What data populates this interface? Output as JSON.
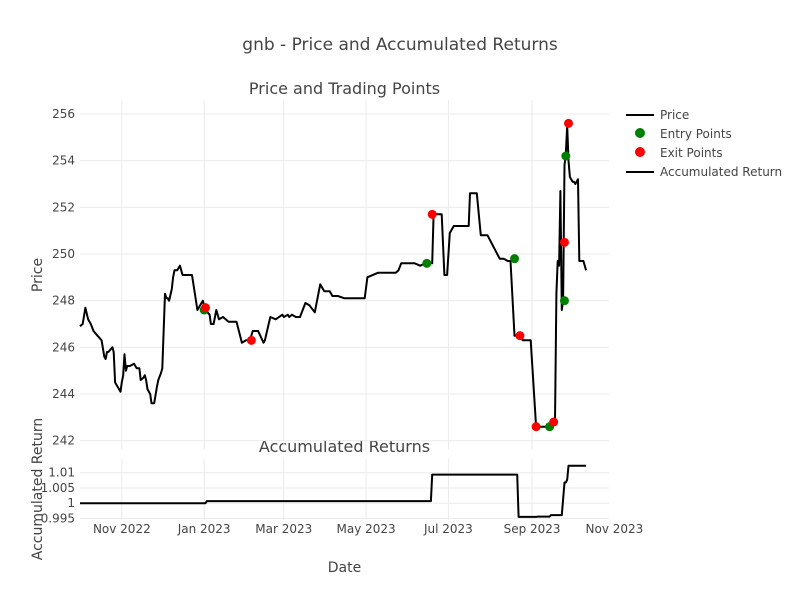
{
  "title": "gnb - Price and Accumulated Returns",
  "chart_data": [
    {
      "type": "line",
      "subplot_title": "Price and Trading Points",
      "ylabel": "Price",
      "xlim": [
        "2022-10-01",
        "2023-10-28"
      ],
      "ylim": [
        241.6,
        256.6
      ],
      "yticks": [
        242,
        244,
        246,
        248,
        250,
        252,
        254,
        256
      ],
      "grid": true,
      "series": [
        {
          "name": "Price",
          "color": "#000000",
          "x": [
            "2022-10-01",
            "2022-10-03",
            "2022-10-05",
            "2022-10-07",
            "2022-10-09",
            "2022-10-11",
            "2022-10-14",
            "2022-10-17",
            "2022-10-19",
            "2022-10-20",
            "2022-10-21",
            "2022-10-22",
            "2022-10-25",
            "2022-10-26",
            "2022-10-27",
            "2022-10-28",
            "2022-10-29",
            "2022-10-31",
            "2022-11-01",
            "2022-11-02",
            "2022-11-03",
            "2022-11-04",
            "2022-11-05",
            "2022-11-07",
            "2022-11-10",
            "2022-11-12",
            "2022-11-13",
            "2022-11-14",
            "2022-11-15",
            "2022-11-17",
            "2022-11-18",
            "2022-11-19",
            "2022-11-20",
            "2022-11-22",
            "2022-11-23",
            "2022-11-25",
            "2022-11-27",
            "2022-11-28",
            "2022-11-30",
            "2022-12-01",
            "2022-12-03",
            "2022-12-04",
            "2022-12-05",
            "2022-12-06",
            "2022-12-08",
            "2022-12-09",
            "2022-12-10",
            "2022-12-12",
            "2022-12-14",
            "2022-12-16",
            "2022-12-17",
            "2022-12-18",
            "2022-12-19",
            "2022-12-20",
            "2022-12-23",
            "2022-12-27",
            "2022-12-31",
            "2023-01-02",
            "2023-01-05",
            "2023-01-06",
            "2023-01-08",
            "2023-01-10",
            "2023-01-12",
            "2023-01-15",
            "2023-01-17",
            "2023-01-19",
            "2023-01-21",
            "2023-01-23",
            "2023-01-25",
            "2023-01-29",
            "2023-02-01",
            "2023-02-03",
            "2023-02-04",
            "2023-02-06",
            "2023-02-10",
            "2023-02-14",
            "2023-02-15",
            "2023-02-19",
            "2023-02-23",
            "2023-02-28",
            "2023-03-01",
            "2023-03-04",
            "2023-03-05",
            "2023-03-07",
            "2023-03-10",
            "2023-03-13",
            "2023-03-17",
            "2023-03-20",
            "2023-03-24",
            "2023-03-28",
            "2023-03-31",
            "2023-04-04",
            "2023-04-06",
            "2023-04-10",
            "2023-04-15",
            "2023-04-17",
            "2023-04-21",
            "2023-04-27",
            "2023-04-30",
            "2023-05-02",
            "2023-05-10",
            "2023-05-20",
            "2023-05-23",
            "2023-05-25",
            "2023-05-27",
            "2023-05-29",
            "2023-06-02",
            "2023-06-06",
            "2023-06-10",
            "2023-06-14",
            "2023-06-17",
            "2023-06-19",
            "2023-06-20",
            "2023-06-26",
            "2023-06-28",
            "2023-06-30",
            "2023-07-02",
            "2023-07-05",
            "2023-07-08",
            "2023-07-10",
            "2023-07-13",
            "2023-07-15",
            "2023-07-16",
            "2023-07-17",
            "2023-07-19",
            "2023-07-22",
            "2023-07-25",
            "2023-07-27",
            "2023-07-30",
            "2023-08-08",
            "2023-08-10",
            "2023-08-11",
            "2023-08-14",
            "2023-08-16",
            "2023-08-19",
            "2023-08-24",
            "2023-08-25",
            "2023-08-30",
            "2023-08-31",
            "2023-09-04",
            "2023-09-05",
            "2023-09-06",
            "2023-09-10",
            "2023-09-12",
            "2023-09-13",
            "2023-09-15",
            "2023-09-18",
            "2023-09-19",
            "2023-09-20",
            "2023-09-21",
            "2023-09-22",
            "2023-09-23",
            "2023-09-24",
            "2023-09-25",
            "2023-09-26",
            "2023-09-27",
            "2023-09-28",
            "2023-09-29",
            "2023-10-01",
            "2023-10-02",
            "2023-10-03",
            "2023-10-05",
            "2023-10-06",
            "2023-10-09",
            "2023-10-11"
          ],
          "y": [
            246.9,
            247.0,
            247.7,
            247.2,
            247.0,
            246.7,
            246.5,
            246.3,
            245.6,
            245.5,
            245.8,
            245.8,
            246.0,
            245.8,
            244.5,
            244.4,
            244.3,
            244.1,
            244.5,
            244.8,
            245.7,
            245.0,
            245.2,
            245.2,
            245.3,
            245.1,
            245.1,
            245.1,
            244.6,
            244.7,
            244.8,
            244.6,
            244.2,
            244.0,
            243.6,
            243.6,
            244.3,
            244.6,
            244.9,
            245.1,
            248.3,
            248.1,
            248.1,
            248.0,
            248.5,
            249.0,
            249.3,
            249.3,
            249.5,
            249.1,
            249.1,
            249.1,
            249.1,
            249.1,
            249.1,
            247.6,
            248.0,
            247.6,
            247.4,
            247.0,
            247.0,
            247.6,
            247.2,
            247.3,
            247.2,
            247.1,
            247.1,
            247.1,
            247.1,
            246.2,
            246.3,
            246.3,
            246.3,
            246.7,
            246.7,
            246.2,
            246.3,
            247.3,
            247.2,
            247.4,
            247.3,
            247.4,
            247.3,
            247.4,
            247.3,
            247.3,
            247.9,
            247.8,
            247.5,
            248.7,
            248.4,
            248.4,
            248.2,
            248.2,
            248.1,
            248.1,
            248.1,
            248.1,
            248.1,
            249.0,
            249.2,
            249.2,
            249.2,
            249.3,
            249.6,
            249.6,
            249.6,
            249.6,
            249.5,
            249.6,
            249.6,
            249.6,
            251.7,
            251.7,
            249.1,
            249.1,
            250.9,
            251.2,
            251.2,
            251.2,
            251.2,
            251.2,
            251.2,
            252.6,
            252.6,
            252.6,
            250.8,
            250.8,
            250.8,
            249.8,
            249.8,
            249.8,
            249.7,
            249.7,
            246.5,
            246.5,
            246.3,
            246.3,
            246.3,
            242.6,
            242.6,
            242.6,
            242.6,
            242.6,
            242.6,
            242.8,
            242.8,
            248.3,
            249.7,
            249.5,
            252.7,
            247.6,
            248.0,
            253.8,
            254.3,
            255.5,
            254.0,
            253.3,
            253.1,
            253.1,
            253.0,
            253.2,
            249.7,
            249.7,
            249.3
          ]
        },
        {
          "name": "Entry Points",
          "color": "#008000",
          "x": [
            "2023-01-01",
            "2023-06-15",
            "2023-08-19",
            "2023-09-14",
            "2023-09-25",
            "2023-09-26"
          ],
          "y": [
            247.6,
            249.6,
            249.8,
            242.6,
            248.0,
            254.2
          ]
        },
        {
          "name": "Exit Points",
          "color": "#ff0000",
          "x": [
            "2023-01-02",
            "2023-02-05",
            "2023-06-19",
            "2023-08-23",
            "2023-09-04",
            "2023-09-17",
            "2023-09-25",
            "2023-09-28"
          ],
          "y": [
            247.7,
            246.3,
            251.7,
            246.5,
            242.6,
            242.8,
            250.5,
            255.6
          ]
        }
      ]
    },
    {
      "type": "line",
      "subplot_title": "Accumulated Returns",
      "xlabel": "Date",
      "ylabel": "Accumulated Return",
      "xlim": [
        "2022-10-01",
        "2023-10-28"
      ],
      "ylim": [
        0.9945,
        1.0145
      ],
      "yticks": [
        0.995,
        1,
        1.005,
        1.01
      ],
      "ytick_labels": [
        "0.995",
        "1",
        "1.005",
        "1.01"
      ],
      "xticks": [
        "2022-11-01",
        "2023-01-01",
        "2023-03-01",
        "2023-05-01",
        "2023-07-01",
        "2023-09-01",
        "2023-11-01"
      ],
      "xtick_labels": [
        "Nov 2022",
        "Jan 2023",
        "Mar 2023",
        "May 2023",
        "Jul 2023",
        "Sep 2023",
        "Nov 2023"
      ],
      "grid": true,
      "series": [
        {
          "name": "Accumulated Return",
          "color": "#000000",
          "x": [
            "2022-10-01",
            "2023-01-02",
            "2023-01-03",
            "2023-06-18",
            "2023-06-19",
            "2023-08-21",
            "2023-08-22",
            "2023-09-04",
            "2023-09-05",
            "2023-09-14",
            "2023-09-15",
            "2023-09-22",
            "2023-09-23",
            "2023-09-25",
            "2023-09-26",
            "2023-09-27",
            "2023-09-28",
            "2023-10-03",
            "2023-10-06",
            "2023-10-11"
          ],
          "y": [
            1.0,
            1.0,
            1.0007,
            1.0007,
            1.0094,
            1.0094,
            0.9955,
            0.9955,
            0.9956,
            0.9956,
            0.9961,
            0.9961,
            0.9961,
            1.0068,
            1.0068,
            1.0077,
            1.0123,
            1.0123,
            1.0123,
            1.0123
          ]
        }
      ]
    }
  ]
}
